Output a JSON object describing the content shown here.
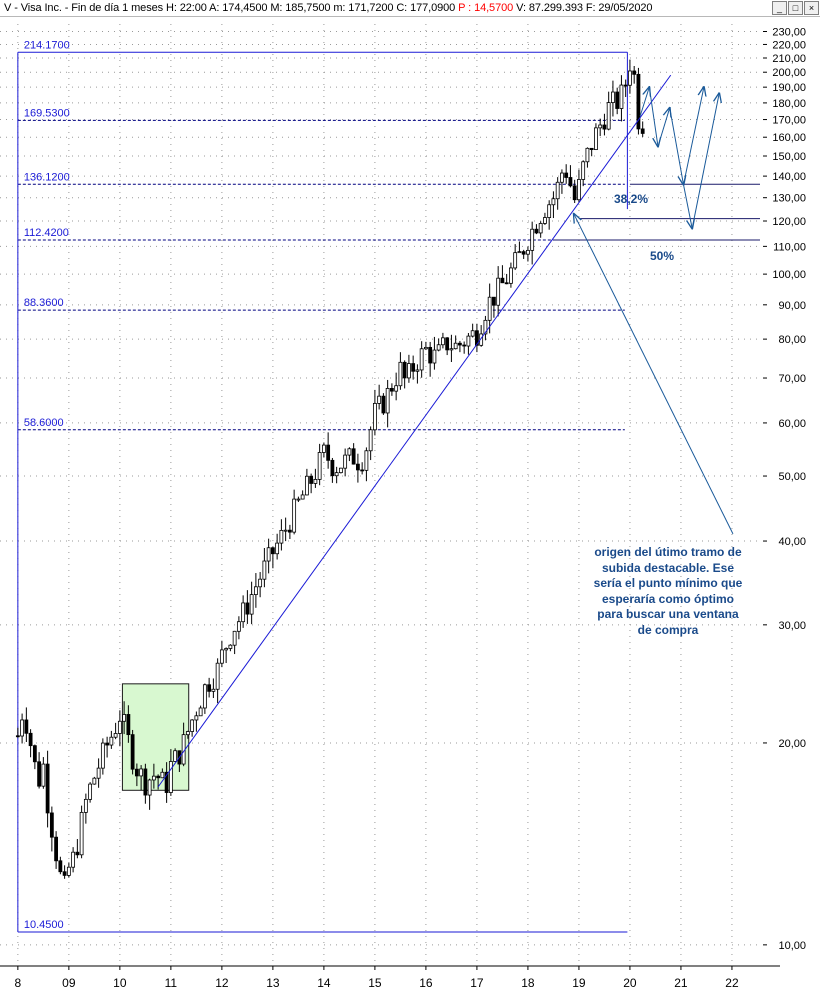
{
  "header": {
    "symbol_text": "V - Visa Inc. - Fin de día 1 meses",
    "stats": "H: 22:00  A: 174,4500  M: 185,7500  m: 171,7200  C: 177,0900",
    "change": "P : 14,5700",
    "tail": "V: 87.299.393  F: 29/05/2020",
    "btn_min": "_",
    "btn_max": "□",
    "btn_close": "×"
  },
  "annotations": {
    "note_text": "origen del útimo tramo de subida destacable. Ese sería el punto mínimo que esperaría como óptimo para buscar una ventana de compra",
    "pct_382": "38,2%",
    "pct_50": "50%"
  },
  "chart_data": {
    "type": "candlestick",
    "title": "V - Visa Inc. - Fin de día 1 meses",
    "y_scale": "log",
    "ylim": [
      9.3,
      236
    ],
    "xlim": [
      2007.65,
      2022.55
    ],
    "y_ticks": [
      {
        "v": 10,
        "label": "10,00"
      },
      {
        "v": 20,
        "label": "20,00"
      },
      {
        "v": 30,
        "label": "30,00"
      },
      {
        "v": 40,
        "label": "40,00"
      },
      {
        "v": 50,
        "label": "50,00"
      },
      {
        "v": 60,
        "label": "60,00"
      },
      {
        "v": 70,
        "label": "70,00"
      },
      {
        "v": 80,
        "label": "80,00"
      },
      {
        "v": 90,
        "label": "90,00"
      },
      {
        "v": 100,
        "label": "100,00"
      },
      {
        "v": 110,
        "label": "110,00"
      },
      {
        "v": 120,
        "label": "120,00"
      },
      {
        "v": 130,
        "label": "130,00"
      },
      {
        "v": 140,
        "label": "140,00"
      },
      {
        "v": 150,
        "label": "150,00"
      },
      {
        "v": 160,
        "label": "160,00"
      },
      {
        "v": 170,
        "label": "170,00"
      },
      {
        "v": 180,
        "label": "180,00"
      },
      {
        "v": 190,
        "label": "190,00"
      },
      {
        "v": 200,
        "label": "200,00"
      },
      {
        "v": 210,
        "label": "210,00"
      },
      {
        "v": 220,
        "label": "220,00"
      },
      {
        "v": 230,
        "label": "230,00"
      }
    ],
    "x_ticks": [
      {
        "v": 2008,
        "label": "8"
      },
      {
        "v": 2009,
        "label": "09"
      },
      {
        "v": 2010,
        "label": "10"
      },
      {
        "v": 2011,
        "label": "11"
      },
      {
        "v": 2012,
        "label": "12"
      },
      {
        "v": 2013,
        "label": "13"
      },
      {
        "v": 2014,
        "label": "14"
      },
      {
        "v": 2015,
        "label": "15"
      },
      {
        "v": 2016,
        "label": "16"
      },
      {
        "v": 2017,
        "label": "17"
      },
      {
        "v": 2018,
        "label": "18"
      },
      {
        "v": 2019,
        "label": "19"
      },
      {
        "v": 2020,
        "label": "20"
      },
      {
        "v": 2021,
        "label": "21"
      },
      {
        "v": 2022,
        "label": "22"
      }
    ],
    "price_path": [
      [
        2008.0,
        20.5
      ],
      [
        2008.1,
        22.5
      ],
      [
        2008.2,
        21.0
      ],
      [
        2008.3,
        19.0
      ],
      [
        2008.4,
        17.5
      ],
      [
        2008.5,
        18.5
      ],
      [
        2008.6,
        16.0
      ],
      [
        2008.7,
        14.5
      ],
      [
        2008.8,
        13.0
      ],
      [
        2008.9,
        12.0
      ],
      [
        2009.0,
        13.0
      ],
      [
        2009.1,
        13.5
      ],
      [
        2009.2,
        14.5
      ],
      [
        2009.3,
        16.0
      ],
      [
        2009.4,
        17.0
      ],
      [
        2009.5,
        17.8
      ],
      [
        2009.7,
        19.5
      ],
      [
        2009.9,
        21.0
      ],
      [
        2010.0,
        22.0
      ],
      [
        2010.1,
        21.0
      ],
      [
        2010.3,
        18.5
      ],
      [
        2010.5,
        17.5
      ],
      [
        2010.7,
        18.0
      ],
      [
        2010.9,
        17.2
      ],
      [
        2011.0,
        18.5
      ],
      [
        2011.2,
        19.5
      ],
      [
        2011.4,
        21.5
      ],
      [
        2011.5,
        22.5
      ],
      [
        2011.7,
        24.5
      ],
      [
        2011.9,
        25.5
      ],
      [
        2012.0,
        27.0
      ],
      [
        2012.2,
        29.5
      ],
      [
        2012.4,
        31.0
      ],
      [
        2012.6,
        33.5
      ],
      [
        2012.8,
        36.0
      ],
      [
        2013.0,
        38.5
      ],
      [
        2013.2,
        41.0
      ],
      [
        2013.4,
        44.0
      ],
      [
        2013.6,
        47.0
      ],
      [
        2013.8,
        50.0
      ],
      [
        2014.0,
        54.0
      ],
      [
        2014.1,
        53.0
      ],
      [
        2014.2,
        51.5
      ],
      [
        2014.4,
        52.5
      ],
      [
        2014.6,
        53.5
      ],
      [
        2014.7,
        52.5
      ],
      [
        2014.8,
        54.0
      ],
      [
        2014.9,
        58.0
      ],
      [
        2015.0,
        62.0
      ],
      [
        2015.2,
        65.0
      ],
      [
        2015.4,
        70.0
      ],
      [
        2015.5,
        72.0
      ],
      [
        2015.6,
        69.0
      ],
      [
        2015.8,
        74.0
      ],
      [
        2016.0,
        77.0
      ],
      [
        2016.2,
        75.0
      ],
      [
        2016.4,
        79.0
      ],
      [
        2016.6,
        78.0
      ],
      [
        2016.8,
        80.0
      ],
      [
        2017.0,
        82.0
      ],
      [
        2017.2,
        90.0
      ],
      [
        2017.4,
        94.0
      ],
      [
        2017.6,
        99.0
      ],
      [
        2017.8,
        105.0
      ],
      [
        2018.0,
        113.0
      ],
      [
        2018.1,
        117.0
      ],
      [
        2018.3,
        125.0
      ],
      [
        2018.5,
        130.0
      ],
      [
        2018.6,
        136.0
      ],
      [
        2018.7,
        145.0
      ],
      [
        2018.8,
        140.0
      ],
      [
        2018.9,
        128.0
      ],
      [
        2019.0,
        135.0
      ],
      [
        2019.1,
        146.0
      ],
      [
        2019.3,
        160.0
      ],
      [
        2019.5,
        172.0
      ],
      [
        2019.6,
        178.0
      ],
      [
        2019.8,
        182.0
      ],
      [
        2019.9,
        190.0
      ],
      [
        2020.0,
        207.0
      ],
      [
        2020.1,
        195.0
      ],
      [
        2020.2,
        160.0
      ],
      [
        2020.3,
        177.0
      ]
    ],
    "fib_levels": [
      {
        "value": 214.17,
        "label": "214.1700"
      },
      {
        "value": 169.53,
        "label": "169.5300"
      },
      {
        "value": 136.12,
        "label": "136.1200"
      },
      {
        "value": 112.42,
        "label": "112.4200"
      },
      {
        "value": 88.36,
        "label": "88.3600"
      },
      {
        "value": 58.6,
        "label": "58.6000"
      },
      {
        "value": 10.45,
        "label": "10.4500"
      }
    ],
    "fib_x_range": [
      2008.0,
      2019.9
    ],
    "fib_vertical_x": 2008.0,
    "support_lines": [
      {
        "value": 136.12,
        "x1": 2020.0,
        "x2": 2022.55
      },
      {
        "value": 121.0,
        "x1": 2019.0,
        "x2": 2022.55
      },
      {
        "value": 112.42,
        "x1": 2018.5,
        "x2": 2022.55
      }
    ],
    "trendline": {
      "x1": 2010.75,
      "y1": 17.2,
      "x2": 2020.8,
      "y2": 198.0
    },
    "highlight_box": {
      "x1": 2010.05,
      "x2": 2011.35,
      "y_low": 17.0,
      "y_high": 24.5
    },
    "projection_path": [
      [
        2020.2,
        172.0
      ],
      [
        2020.38,
        190.0
      ],
      [
        2020.55,
        155.0
      ],
      [
        2020.78,
        177.0
      ],
      [
        2021.05,
        136.0
      ],
      [
        2021.45,
        190.0
      ]
    ],
    "projection_path_2": [
      [
        2021.05,
        136.0
      ],
      [
        2021.22,
        117.0
      ],
      [
        2021.75,
        186.0
      ]
    ],
    "note_arrow": {
      "from": [
        2022.02,
        41.0
      ],
      "to": [
        2018.9,
        123.0
      ]
    }
  }
}
